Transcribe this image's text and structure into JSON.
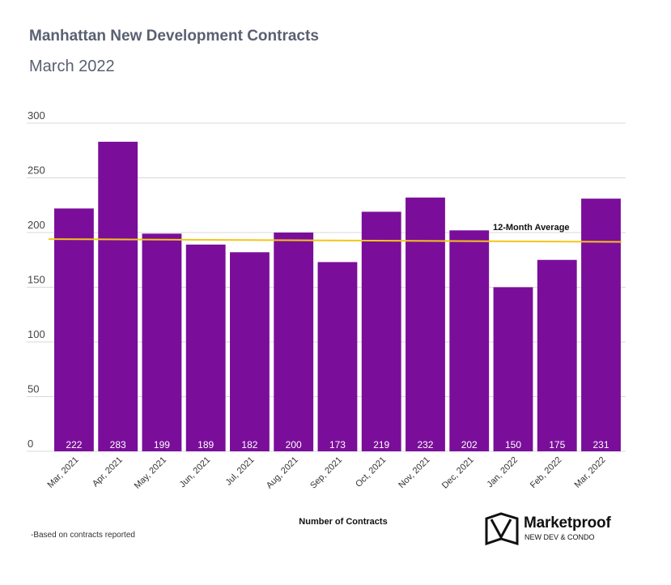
{
  "header": {
    "title": "Manhattan New Development Contracts",
    "subtitle": "March 2022"
  },
  "chart_data": {
    "type": "bar",
    "title": "Manhattan New Development Contracts",
    "subtitle": "March 2022",
    "categories": [
      "Mar, 2021",
      "Apr, 2021",
      "May, 2021",
      "Jun, 2021",
      "Jul, 2021",
      "Aug, 2021",
      "Sep, 2021",
      "Oct, 2021",
      "Nov, 2021",
      "Dec, 2021",
      "Jan, 2022",
      "Feb, 2022",
      "Mar, 2022"
    ],
    "values": [
      222,
      283,
      199,
      189,
      182,
      200,
      173,
      219,
      232,
      202,
      150,
      175,
      231
    ],
    "xlabel": "Number of Contracts",
    "ylabel": "",
    "ylim": [
      0,
      300
    ],
    "yticks": [
      0,
      50,
      100,
      150,
      200,
      250,
      300
    ],
    "grid": true,
    "average_line": {
      "label": "12-Month Average",
      "start_value": 194,
      "end_value": 191.5
    },
    "colors": {
      "bar": "#7a0e9a",
      "average_line": "#f5c518",
      "grid": "#d9d9d9",
      "label": "#ffffff"
    }
  },
  "footnote": "-Based on contracts reported",
  "logo": {
    "name": "Marketproof",
    "tagline": "NEW DEV & CONDO"
  }
}
